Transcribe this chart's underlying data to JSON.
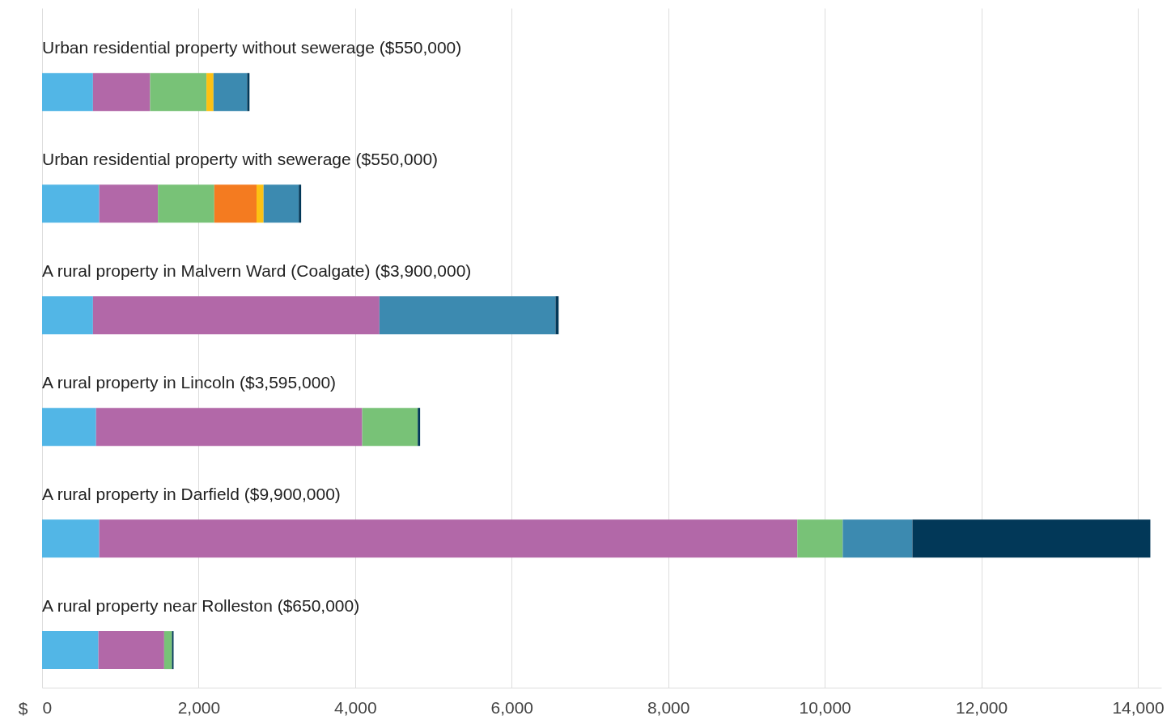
{
  "chart_data": {
    "type": "bar",
    "orientation": "horizontal",
    "stacked": true,
    "xlabel": "$",
    "categories": [
      "Urban residential property without sewerage ($550,000)",
      "Urban residential property with sewerage ($550,000)",
      "A rural property in Malvern Ward (Coalgate) ($3,900,000)",
      "A rural property in Lincoln ($3,595,000)",
      "A rural property in Darfield ($9,900,000)",
      "A rural property near Rolleston ($650,000)"
    ],
    "series": [
      {
        "color": "#52b6e6",
        "values": [
          650,
          730,
          650,
          690,
          730,
          720
        ]
      },
      {
        "color": "#b268a8",
        "values": [
          730,
          750,
          3660,
          3400,
          8920,
          840
        ]
      },
      {
        "color": "#78c277",
        "values": [
          720,
          720,
          null,
          710,
          580,
          100
        ]
      },
      {
        "color": "#f47b20",
        "values": [
          null,
          540,
          null,
          null,
          null,
          null
        ]
      },
      {
        "color": "#fdc113",
        "values": [
          90,
          90,
          null,
          null,
          null,
          null
        ]
      },
      {
        "color": "#3c8ab0",
        "values": [
          430,
          450,
          2250,
          null,
          890,
          null
        ]
      },
      {
        "color": "#023858",
        "values": [
          30,
          30,
          40,
          30,
          3040,
          20
        ]
      }
    ],
    "xlim": [
      0,
      14300
    ],
    "xticks": [
      0,
      {
        "value": 2000,
        "label": "2,000"
      },
      {
        "value": 4000,
        "label": "4,000"
      },
      {
        "value": 6000,
        "label": "6,000"
      },
      {
        "value": 8000,
        "label": "8,000"
      },
      {
        "value": 10000,
        "label": "10,000"
      },
      {
        "value": 12000,
        "label": "12,000"
      },
      {
        "value": 14000,
        "label": "14,000"
      }
    ],
    "grid": "x",
    "legend": false
  }
}
